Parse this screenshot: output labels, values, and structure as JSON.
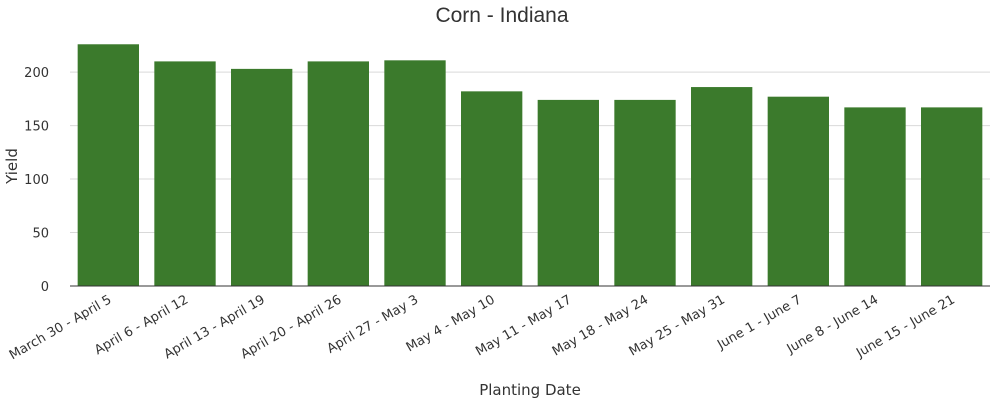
{
  "chart_data": {
    "type": "bar",
    "title": "Corn - Indiana",
    "xlabel": "Planting Date",
    "ylabel": "Yield",
    "ylim": [
      0,
      230
    ],
    "yticks": [
      0,
      50,
      100,
      150,
      200
    ],
    "grid": true,
    "categories": [
      "March 30 - April 5",
      "April 6 - April 12",
      "April 13 - April 19",
      "April 20 - April 26",
      "April 27 - May 3",
      "May 4 - May 10",
      "May 11 - May 17",
      "May 18 - May 24",
      "May 25 - May 31",
      "June 1 - June 7",
      "June 8 - June 14",
      "June 15 - June 21"
    ],
    "values": [
      226,
      210,
      203,
      210,
      211,
      182,
      174,
      174,
      186,
      177,
      167,
      167
    ],
    "color": "#3b7a2c"
  }
}
